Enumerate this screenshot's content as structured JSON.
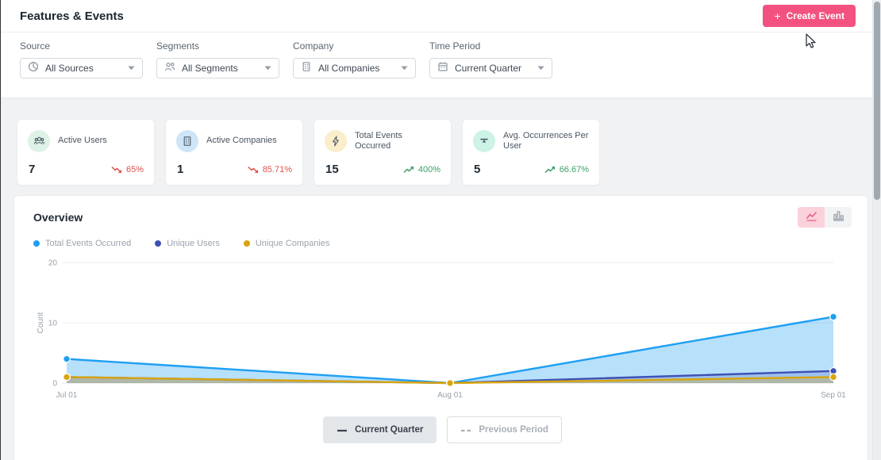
{
  "header": {
    "title": "Features & Events",
    "create_button": {
      "plus": "+",
      "label": "Create Event",
      "bg_color": "#f35280"
    }
  },
  "filters": [
    {
      "label": "Source",
      "value": "All Sources",
      "icon": "pie-globe-icon"
    },
    {
      "label": "Segments",
      "value": "All Segments",
      "icon": "users-icon"
    },
    {
      "label": "Company",
      "value": "All Companies",
      "icon": "building-icon"
    },
    {
      "label": "Time Period",
      "value": "Current Quarter",
      "icon": "calendar-icon"
    }
  ],
  "stats": [
    {
      "label": "Active Users",
      "value": "7",
      "change": "65%",
      "direction": "down",
      "icon": "users-group-icon",
      "icon_bg": "#dff2e7"
    },
    {
      "label": "Active Companies",
      "value": "1",
      "change": "85.71%",
      "direction": "down",
      "icon": "building-icon",
      "icon_bg": "#cde5f7"
    },
    {
      "label": "Total Events Occurred",
      "value": "15",
      "change": "400%",
      "direction": "up",
      "icon": "lightning-icon",
      "icon_bg": "#faeecb"
    },
    {
      "label": "Avg. Occurrences Per User",
      "value": "5",
      "change": "66.67%",
      "direction": "up",
      "icon": "average-icon",
      "icon_bg": "#cdf2e6"
    }
  ],
  "trend_colors": {
    "up": "#3d9e68",
    "down": "#e0514c"
  },
  "overview": {
    "title": "Overview",
    "chart_toggle": {
      "active": "line",
      "active_bg": "#fbd2dc",
      "active_icon_color": "#ec5c85",
      "inactive_icon_color": "#9aa4ad"
    },
    "period_buttons": [
      {
        "label": "Current Quarter",
        "active": true
      },
      {
        "label": "Previous Period",
        "active": false
      }
    ]
  },
  "chart_data": {
    "type": "area",
    "title": "Overview",
    "categories": [
      "Jul 01",
      "Aug 01",
      "Sep 01"
    ],
    "series": [
      {
        "name": "Total Events Occurred",
        "color": "#1e9ff2",
        "fill": "rgba(30,159,242,0.32)",
        "values": [
          4,
          0,
          11
        ]
      },
      {
        "name": "Unique Users",
        "color": "#3f51b5",
        "fill": "rgba(63,81,181,0.22)",
        "values": [
          1,
          0,
          2
        ]
      },
      {
        "name": "Unique Companies",
        "color": "#d9a40d",
        "fill": "rgba(217,164,13,0.30)",
        "values": [
          1,
          0,
          1
        ]
      }
    ],
    "xlabel": "",
    "ylabel": "Count",
    "ylim": [
      0,
      20
    ],
    "yticks": [
      0,
      10,
      20
    ],
    "grid": true,
    "legend_position": "top-left"
  }
}
